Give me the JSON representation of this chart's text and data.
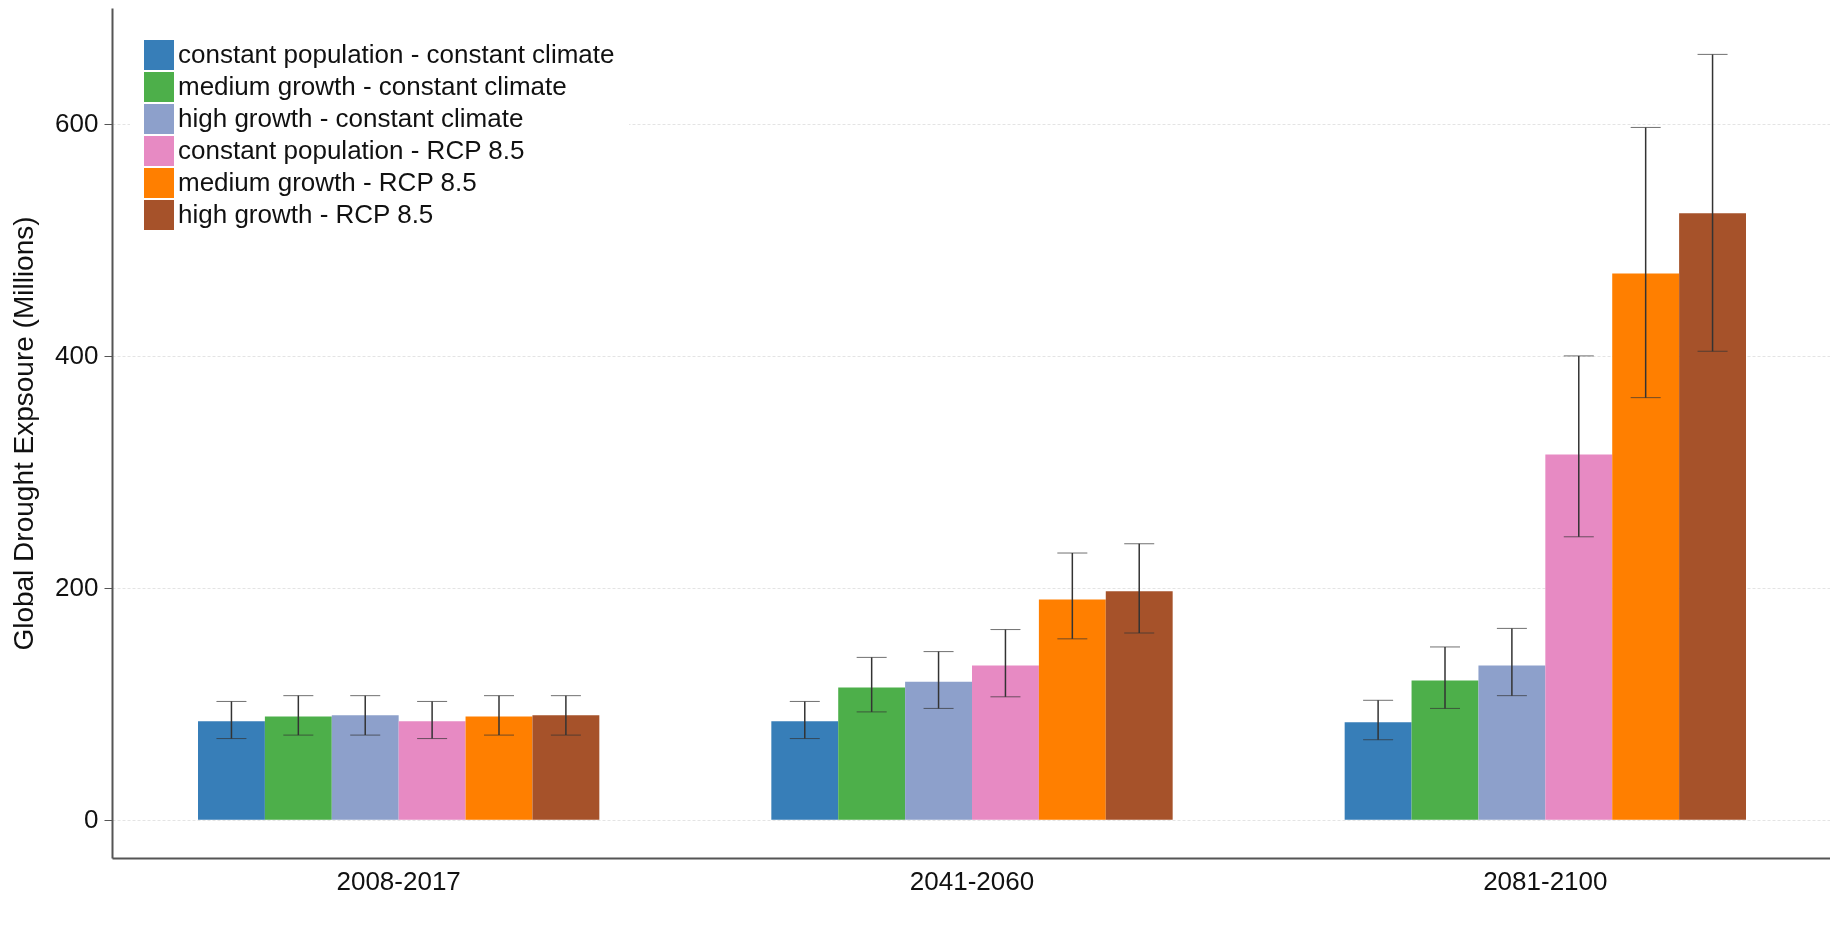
{
  "chart_data": {
    "type": "bar",
    "ylabel": "Global Drought Expsoure (Millions)",
    "categories": [
      "2008-2017",
      "2041-2060",
      "2081-2100"
    ],
    "series": [
      {
        "name": "constant population - constant climate",
        "color": "#377eb8",
        "values": [
          85,
          85,
          84
        ],
        "errors": [
          [
            70,
            102
          ],
          [
            70,
            102
          ],
          [
            69,
            103
          ]
        ]
      },
      {
        "name": "medium growth - constant climate",
        "color": "#4daf4a",
        "values": [
          89,
          114,
          120
        ],
        "errors": [
          [
            73,
            107
          ],
          [
            93,
            140
          ],
          [
            96,
            149
          ]
        ]
      },
      {
        "name": "high growth - constant climate",
        "color": "#8da0cb",
        "values": [
          90,
          119,
          133
        ],
        "errors": [
          [
            73,
            107
          ],
          [
            96,
            145
          ],
          [
            107,
            165
          ]
        ]
      },
      {
        "name": "constant population - RCP 8.5",
        "color": "#e78ac3",
        "values": [
          85,
          133,
          315
        ],
        "errors": [
          [
            70,
            102
          ],
          [
            106,
            164
          ],
          [
            244,
            400
          ]
        ]
      },
      {
        "name": "medium growth - RCP 8.5",
        "color": "#ff7f00",
        "values": [
          89,
          190,
          471
        ],
        "errors": [
          [
            73,
            107
          ],
          [
            156,
            230
          ],
          [
            364,
            597
          ]
        ]
      },
      {
        "name": "high growth - RCP 8.5",
        "color": "#a6522a",
        "values": [
          90,
          197,
          523
        ],
        "errors": [
          [
            73,
            107
          ],
          [
            161,
            238
          ],
          [
            404,
            660
          ]
        ]
      }
    ],
    "ylim": [
      -33,
      700
    ],
    "yticks": [
      0,
      200,
      400,
      600
    ],
    "grid": "y",
    "legend": "top left"
  }
}
